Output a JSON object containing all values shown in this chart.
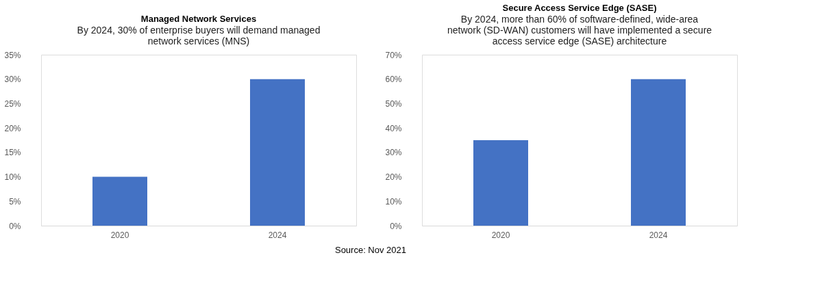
{
  "chart_data": [
    {
      "type": "bar",
      "title": "Managed Network Services",
      "subtitle": "By 2024, 30% of enterprise buyers will demand managed network services (MNS)",
      "categories": [
        "2020",
        "2024"
      ],
      "values": [
        10,
        30
      ],
      "color": "#4472c4",
      "ylim": [
        0,
        35
      ],
      "yticks": [
        {
          "value": 0,
          "label": "0%"
        },
        {
          "value": 5,
          "label": "5%"
        },
        {
          "value": 10,
          "label": "10%"
        },
        {
          "value": 15,
          "label": "15%"
        },
        {
          "value": 20,
          "label": "20%"
        },
        {
          "value": 25,
          "label": "25%"
        },
        {
          "value": 30,
          "label": "30%"
        },
        {
          "value": 35,
          "label": "35%"
        }
      ],
      "grid": false
    },
    {
      "type": "bar",
      "title": "Secure Access Service Edge (SASE)",
      "subtitle": "By 2024, more than 60% of software-defined, wide-area network (SD-WAN) customers will have implemented a secure access service edge (SASE) architecture",
      "categories": [
        "2020",
        "2024"
      ],
      "values": [
        35,
        60
      ],
      "color": "#4472c4",
      "ylim": [
        0,
        70
      ],
      "yticks": [
        {
          "value": 0,
          "label": "0%"
        },
        {
          "value": 10,
          "label": "10%"
        },
        {
          "value": 20,
          "label": "20%"
        },
        {
          "value": 30,
          "label": "30%"
        },
        {
          "value": 40,
          "label": "40%"
        },
        {
          "value": 50,
          "label": "50%"
        },
        {
          "value": 60,
          "label": "60%"
        },
        {
          "value": 70,
          "label": "70%"
        }
      ],
      "grid": false,
      "annotations": [
        "Source: Nov 2021"
      ]
    }
  ]
}
